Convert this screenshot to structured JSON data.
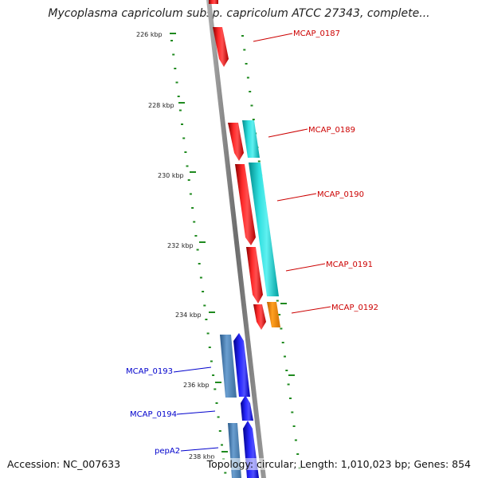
{
  "title": "Mycoplasma capricolum subsp. capricolum ATCC 27343, complete...",
  "accession": "Accession: NC_007633",
  "summary": "Topology: circular; Length: 1,010,023 bp; Genes: 854",
  "colors": {
    "backbone": "#8c8c8c",
    "tick": "#1f8a1f",
    "forward_label": "#cc0000",
    "reverse_label": "#0000cc"
  },
  "ticks": [
    {
      "label": "226 kbp"
    },
    {
      "label": "228 kbp"
    },
    {
      "label": "230 kbp"
    },
    {
      "label": "232 kbp"
    },
    {
      "label": "234 kbp"
    },
    {
      "label": "236 kbp"
    },
    {
      "label": "238 kbp"
    }
  ],
  "genes": [
    {
      "name": "MCAP_0187",
      "strand": "forward",
      "color": "#ff0000",
      "labeled": true
    },
    {
      "name": "MCAP_0189",
      "strand": "forward",
      "color": "#ff0000",
      "labeled": true
    },
    {
      "name": "MCAP_0190",
      "strand": "forward",
      "color": "#ff0000",
      "labeled": true
    },
    {
      "name": "MCAP_0191",
      "strand": "forward",
      "color": "#ff0000",
      "labeled": true
    },
    {
      "name": "MCAP_0192",
      "strand": "forward",
      "color": "#ff0000",
      "labeled": true
    },
    {
      "name": "MCAP_0193",
      "strand": "reverse",
      "color": "#0000ff",
      "labeled": true
    },
    {
      "name": "MCAP_0194",
      "strand": "reverse",
      "color": "#0000ff",
      "labeled": true
    },
    {
      "name": "pepA2",
      "strand": "reverse",
      "color": "#0000ff",
      "labeled": true
    }
  ],
  "features": [
    {
      "category": "CDS",
      "strand": "forward",
      "color": "#00cccc"
    },
    {
      "category": "rRNA",
      "strand": "forward",
      "color": "#ff9900"
    },
    {
      "category": "CDS",
      "strand": "reverse",
      "color": "#4682b4"
    }
  ]
}
